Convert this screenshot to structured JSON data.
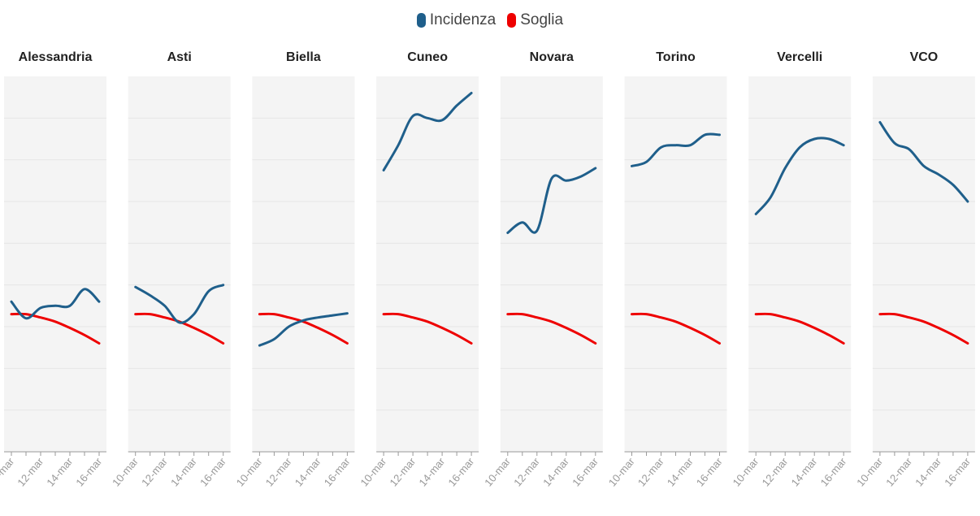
{
  "legend": [
    {
      "name": "Incidenza",
      "color": "#1f5f8b"
    },
    {
      "name": "Soglia",
      "color": "#ee0000"
    }
  ],
  "chart_data": {
    "type": "line",
    "x": [
      "10-mar",
      "11-mar",
      "12-mar",
      "13-mar",
      "14-mar",
      "15-mar",
      "16-mar"
    ],
    "x_tick_labels": [
      "10-mar",
      "12-mar",
      "14-mar",
      "16-mar"
    ],
    "ylim": [
      0,
      9
    ],
    "grid": true,
    "legend_position": "top",
    "colors": {
      "incidenza": "#1f5f8b",
      "soglia": "#ee0000"
    },
    "panels": [
      {
        "title": "Alessandria",
        "incidenza": [
          3.6,
          3.2,
          3.45,
          3.5,
          3.5,
          3.9,
          3.6
        ],
        "soglia": [
          3.3,
          3.3,
          3.22,
          3.12,
          2.97,
          2.8,
          2.6
        ]
      },
      {
        "title": "Asti",
        "incidenza": [
          3.95,
          3.75,
          3.5,
          3.1,
          3.3,
          3.85,
          4.0
        ],
        "soglia": [
          3.3,
          3.3,
          3.22,
          3.12,
          2.97,
          2.8,
          2.6
        ]
      },
      {
        "title": "Biella",
        "incidenza": [
          2.55,
          2.7,
          3.0,
          3.15,
          3.22,
          3.27,
          3.32
        ],
        "soglia": [
          3.3,
          3.3,
          3.22,
          3.12,
          2.97,
          2.8,
          2.6
        ]
      },
      {
        "title": "Cuneo",
        "incidenza": [
          6.75,
          7.35,
          8.05,
          8.0,
          7.95,
          8.3,
          8.6
        ],
        "soglia": [
          3.3,
          3.3,
          3.22,
          3.12,
          2.97,
          2.8,
          2.6
        ]
      },
      {
        "title": "Novara",
        "incidenza": [
          5.25,
          5.5,
          5.3,
          6.55,
          6.5,
          6.6,
          6.8
        ],
        "soglia": [
          3.3,
          3.3,
          3.22,
          3.12,
          2.97,
          2.8,
          2.6
        ]
      },
      {
        "title": "Torino",
        "incidenza": [
          6.85,
          6.95,
          7.3,
          7.35,
          7.35,
          7.6,
          7.6
        ],
        "soglia": [
          3.3,
          3.3,
          3.22,
          3.12,
          2.97,
          2.8,
          2.6
        ]
      },
      {
        "title": "Vercelli",
        "incidenza": [
          5.7,
          6.1,
          6.8,
          7.3,
          7.5,
          7.5,
          7.35
        ],
        "soglia": [
          3.3,
          3.3,
          3.22,
          3.12,
          2.97,
          2.8,
          2.6
        ]
      },
      {
        "title": "VCO",
        "incidenza": [
          7.9,
          7.4,
          7.25,
          6.85,
          6.65,
          6.4,
          6.0
        ],
        "soglia": [
          3.3,
          3.3,
          3.22,
          3.12,
          2.97,
          2.8,
          2.6
        ]
      }
    ]
  }
}
